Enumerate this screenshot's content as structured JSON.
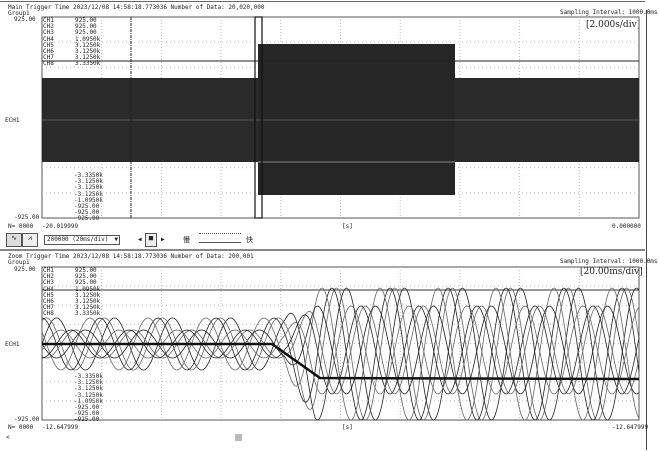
{
  "main": {
    "header": "Main Trigger Time  2023/12/08 14:58:18.773036    Number of Data: 20,020,000",
    "group": "Group1",
    "sampling": "Sampling Interval:  1000.0ms",
    "div": "[2.000s/div]",
    "ymax": "925.00",
    "ymin": "-925.00",
    "ylabel": "ECH1",
    "n": "N= 0000",
    "xstart": "-20.019999",
    "xunit": "[s]",
    "xend": "0.000000",
    "channels": [
      "CH1",
      "CH2",
      "CH3",
      "CH4",
      "CH5",
      "CH6",
      "CH7",
      "CH8"
    ],
    "upper": [
      "925.00",
      "925.00",
      "925.00",
      "1.0950k",
      "3.1250k",
      "3.1250k",
      "3.1250k",
      "3.3350k"
    ],
    "lower": [
      "-3.3350k",
      "-3.1250k",
      "-3.1250k",
      "-3.1250k",
      "-1.0950k",
      "-925.00",
      "-925.00",
      "-925.00"
    ]
  },
  "toolbar": {
    "sample_select": "200000  (20ms/div)",
    "slow": "慢",
    "fast": "快",
    "prev": "◀",
    "stop": "■",
    "next": "▶"
  },
  "zoom": {
    "header": "Zoom Trigger Time  2023/12/08 14:58:18.773036    Number of Data: 200,001",
    "group": "Group1",
    "sampling": "Sampling Interval:  1000.0ms",
    "div": "[20.00ms/div]",
    "ymax": "925.00",
    "ymin": "-925.00",
    "ylabel": "ECH1",
    "n": "N= 0000",
    "xstart": "-12.647999",
    "xunit": "[s]",
    "xend": "-12.647999",
    "channels": [
      "CH1",
      "CH2",
      "CH3",
      "CH4",
      "CH5",
      "CH6",
      "CH7",
      "CH8"
    ],
    "upper": [
      "925.00",
      "925.00",
      "925.00",
      "1.0950k",
      "3.1250k",
      "3.1250k",
      "3.1250k",
      "3.3350k"
    ],
    "lower": [
      "-3.3350k",
      "-3.1250k",
      "-3.1250k",
      "-3.1250k",
      "-1.0950k",
      "-925.00",
      "-925.00",
      "-925.00"
    ]
  },
  "scroll_left": "<"
}
